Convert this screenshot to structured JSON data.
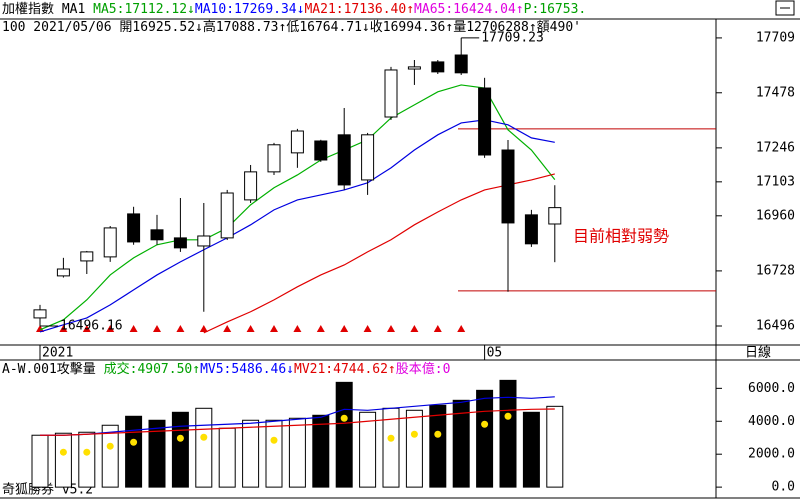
{
  "chart_data": [
    {
      "type": "candlestick",
      "header_rows": [
        [
          {
            "text": "加權指數 ",
            "color": "#000000"
          },
          {
            "text": "MA1 ",
            "color": "#000000"
          },
          {
            "text": "MA5:17112.12↓",
            "color": "#00a000"
          },
          {
            "text": "MA10:17269.34↓",
            "color": "#0000ff"
          },
          {
            "text": "MA21:17136.40↑",
            "color": "#e00000"
          },
          {
            "text": "MA65:16424.04↑",
            "color": "#e000e0"
          },
          {
            "text": "P:16753.",
            "color": "#00a000"
          }
        ],
        [
          {
            "text": "100 2021/05/06 ",
            "color": "#000000"
          },
          {
            "text": "開16925.52↓",
            "color": "#000000"
          },
          {
            "text": "高17088.73↑",
            "color": "#000000"
          },
          {
            "text": "低16764.71↓",
            "color": "#000000"
          },
          {
            "text": "收16994.36↑",
            "color": "#000000"
          },
          {
            "text": "量12706288↑",
            "color": "#000000"
          },
          {
            "text": "額490'",
            "color": "#000000"
          }
        ]
      ],
      "categories": [
        "2021",
        null,
        null,
        null,
        null,
        null,
        null,
        null,
        null,
        null,
        null,
        null,
        null,
        null,
        null,
        null,
        null,
        null,
        null,
        "05",
        null,
        null,
        null
      ],
      "open": [
        16530,
        16707,
        16770,
        16787,
        16968,
        16901,
        16867,
        16833,
        16867,
        17027,
        17145,
        17225,
        17275,
        17301,
        17111,
        17376,
        17578,
        17608,
        17637,
        17498,
        17237,
        16964,
        16925.52
      ],
      "high": [
        16585,
        16783,
        16812,
        16917,
        16998,
        16964,
        17035,
        17014,
        17069,
        17174,
        17267,
        17326,
        17280,
        17414,
        17309,
        17587,
        17616,
        17616,
        17709.23,
        17541,
        17279,
        16985,
        17088.73
      ],
      "low": [
        16496.16,
        16700,
        16715,
        16766,
        16838,
        16838,
        16808,
        16556,
        16858,
        17014,
        17132,
        17162,
        17187,
        17069,
        17048,
        17364,
        17511,
        17557,
        17553,
        17204,
        16640,
        16829,
        16764.71
      ],
      "close": [
        16564,
        16736,
        16808,
        16909,
        16850,
        16859,
        16825,
        16875,
        17056,
        17145,
        17259,
        17317,
        17195,
        17090,
        17301,
        17574,
        17587,
        17566,
        17562,
        17216,
        16930,
        16842,
        16994.36
      ],
      "series": [
        {
          "color": "#00b000",
          "values": [
            16480,
            16522,
            16606,
            16711,
            16783,
            16838,
            16859,
            16859,
            16909,
            17006,
            17078,
            17132,
            17195,
            17237,
            17280,
            17372,
            17427,
            17482,
            17511,
            17498,
            17322,
            17237,
            17112.12
          ]
        },
        {
          "color": "#0000e0",
          "values": [
            16471,
            16501,
            16530,
            16585,
            16648,
            16711,
            16766,
            16817,
            16867,
            16922,
            16985,
            17027,
            17048,
            17069,
            17099,
            17162,
            17237,
            17301,
            17351,
            17364,
            17343,
            17288,
            17269.34
          ]
        },
        {
          "color": "#e00000",
          "values": [
            null,
            null,
            null,
            null,
            null,
            null,
            null,
            16467,
            16513,
            16556,
            16606,
            16661,
            16711,
            16753,
            16808,
            16859,
            16922,
            16976,
            17027,
            17069,
            17090,
            17111,
            17136.4
          ]
        }
      ],
      "hlines": [
        17326,
        16644
      ],
      "hline_color": "#c00000",
      "annotations": [
        {
          "text": "17709.23",
          "value": 17709.23,
          "index": 18
        },
        {
          "text": "16496.16",
          "value": 16496.16,
          "index": 0
        }
      ],
      "note": "目前相對弱勢",
      "period_label": "日線",
      "ylim": [
        16416,
        17776
      ],
      "yticks": [
        17709,
        17478,
        17246,
        17103,
        16960,
        16728,
        16496
      ]
    },
    {
      "type": "bar",
      "header_rows": [
        [
          {
            "text": "A-W.001攻擊量 ",
            "color": "#000000"
          },
          {
            "text": "成交:4907.50↑",
            "color": "#00a000"
          },
          {
            "text": "MV5:5486.46↓",
            "color": "#0000ff"
          },
          {
            "text": "MV21:4744.62↑",
            "color": "#e00000"
          },
          {
            "text": "股本億:0",
            "color": "#e000e0"
          }
        ]
      ],
      "values": [
        3152,
        3273,
        3333,
        3758,
        4303,
        4061,
        4545,
        4788,
        3576,
        4061,
        4061,
        4182,
        4364,
        6364,
        4545,
        4788,
        4667,
        4970,
        5273,
        5879,
        6485,
        4545,
        4907.5
      ],
      "series": [
        {
          "color": "#0000e0",
          "values": [
            3152,
            3152,
            3212,
            3333,
            3455,
            3576,
            3697,
            3758,
            3818,
            3879,
            4000,
            4121,
            4243,
            4727,
            4667,
            4788,
            4909,
            5030,
            5152,
            5394,
            5455,
            5394,
            5486.46
          ]
        },
        {
          "color": "#e00000",
          "values": [
            3152,
            3152,
            3212,
            3273,
            3333,
            3394,
            3455,
            3515,
            3576,
            3636,
            3697,
            3758,
            3818,
            3879,
            4000,
            4121,
            4243,
            4364,
            4485,
            4606,
            4667,
            4727,
            4744.62
          ]
        }
      ],
      "dots": {
        "color": "#ffe000",
        "values": [
          null,
          2121,
          2121,
          2485,
          2727,
          null,
          2970,
          3030,
          null,
          null,
          2848,
          null,
          null,
          4182,
          null,
          2970,
          3212,
          3212,
          null,
          3818,
          4303,
          null,
          null
        ]
      },
      "footer": "奇狐勝券 v5.2",
      "ylim": [
        -600,
        7600
      ],
      "yticks": [
        {
          "value": 6000,
          "label": "6000.0"
        },
        {
          "value": 4000,
          "label": "4000.0"
        },
        {
          "value": 2000,
          "label": "2000.0"
        },
        {
          "value": 0,
          "label": "0.0"
        }
      ]
    }
  ]
}
